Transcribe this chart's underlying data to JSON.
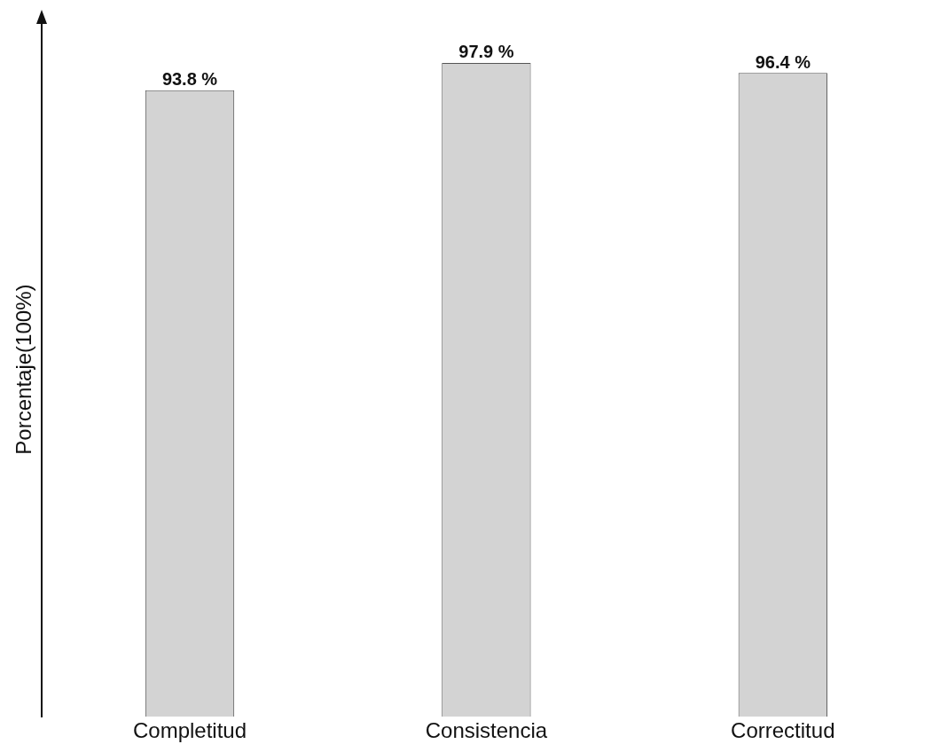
{
  "chart_data": {
    "type": "bar",
    "ylabel": "Porcentaje(100%)",
    "categories": [
      "Completitud",
      "Consistencia",
      "Correctitud"
    ],
    "values": [
      93.8,
      97.9,
      96.4
    ],
    "value_labels": [
      "93.8 %",
      "97.9 %",
      "96.4 %"
    ],
    "color": "#d3d3d3",
    "ylim": [
      0,
      104
    ],
    "tick_labels": "x",
    "grid": false,
    "legend": false
  }
}
